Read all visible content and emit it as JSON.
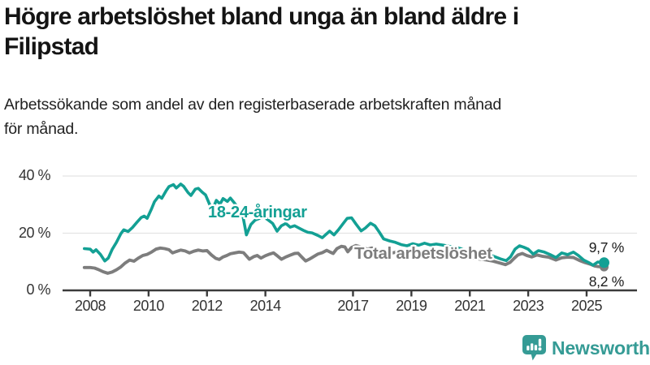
{
  "header": {
    "title_line1": "Högre arbetslöshet bland unga än bland äldre i",
    "title_line2": "Filipstad",
    "subtitle_line1": "Arbetssökande som andel av den registerbaserade arbetskraften månad",
    "subtitle_line2": "för månad."
  },
  "logo": {
    "text": "Newsworthy",
    "icon": "bar-chart-speech-bubble-icon",
    "color": "#359b95"
  },
  "chart_data": {
    "type": "line",
    "title": "Högre arbetslöshet bland unga än bland äldre i Filipstad",
    "subtitle": "Arbetssökande som andel av den registerbaserade arbetskraften månad för månad.",
    "grid": "horizontal",
    "x_axis": {
      "ticks": [
        2008,
        2010,
        2012,
        2014,
        2017,
        2019,
        2021,
        2023,
        2025
      ],
      "range": [
        2007.1,
        2026.7
      ]
    },
    "y_axis": {
      "ticks": [
        {
          "value": 0,
          "label": "0 %"
        },
        {
          "value": 20,
          "label": "20 %"
        },
        {
          "value": 40,
          "label": "40 %"
        }
      ],
      "range": [
        0,
        42
      ],
      "unit": "%"
    },
    "series": [
      {
        "id": "youth",
        "name": "18-24-åringar",
        "label": "18-24-åringar",
        "end_label": "9,7 %",
        "latest_value": 9.7,
        "color": "#13a094",
        "stroke_width": 3.6,
        "dot_radius": 6.5,
        "points": [
          [
            2007.8,
            14.6
          ],
          [
            2008.0,
            14.4
          ],
          [
            2008.1,
            13.4
          ],
          [
            2008.2,
            14.2
          ],
          [
            2008.35,
            12.6
          ],
          [
            2008.5,
            10.3
          ],
          [
            2008.62,
            11.3
          ],
          [
            2008.75,
            14.3
          ],
          [
            2008.9,
            16.8
          ],
          [
            2009.05,
            19.8
          ],
          [
            2009.15,
            21.2
          ],
          [
            2009.3,
            20.6
          ],
          [
            2009.45,
            22.0
          ],
          [
            2009.6,
            23.8
          ],
          [
            2009.75,
            25.5
          ],
          [
            2009.85,
            26.0
          ],
          [
            2009.95,
            25.2
          ],
          [
            2010.1,
            28.5
          ],
          [
            2010.2,
            31.0
          ],
          [
            2010.35,
            33.0
          ],
          [
            2010.45,
            32.2
          ],
          [
            2010.6,
            34.8
          ],
          [
            2010.7,
            36.3
          ],
          [
            2010.85,
            37.0
          ],
          [
            2010.95,
            35.8
          ],
          [
            2011.1,
            37.2
          ],
          [
            2011.2,
            36.4
          ],
          [
            2011.35,
            34.2
          ],
          [
            2011.45,
            33.2
          ],
          [
            2011.6,
            35.4
          ],
          [
            2011.7,
            35.7
          ],
          [
            2011.85,
            34.2
          ],
          [
            2011.95,
            33.4
          ],
          [
            2012.1,
            29.8
          ],
          [
            2012.2,
            28.6
          ],
          [
            2012.32,
            31.5
          ],
          [
            2012.45,
            30.2
          ],
          [
            2012.55,
            32.1
          ],
          [
            2012.7,
            31.1
          ],
          [
            2012.8,
            32.3
          ],
          [
            2012.95,
            30.4
          ],
          [
            2013.1,
            28.4
          ],
          [
            2013.22,
            26.5
          ],
          [
            2013.35,
            19.4
          ],
          [
            2013.5,
            23.0
          ],
          [
            2013.65,
            24.6
          ],
          [
            2013.8,
            25.2
          ],
          [
            2013.95,
            25.6
          ],
          [
            2014.1,
            24.6
          ],
          [
            2014.25,
            23.4
          ],
          [
            2014.4,
            20.7
          ],
          [
            2014.55,
            22.6
          ],
          [
            2014.7,
            23.4
          ],
          [
            2014.85,
            22.1
          ],
          [
            2015.0,
            22.6
          ],
          [
            2015.15,
            21.8
          ],
          [
            2015.3,
            21.0
          ],
          [
            2015.45,
            20.3
          ],
          [
            2015.6,
            20.1
          ],
          [
            2015.8,
            19.2
          ],
          [
            2015.95,
            18.4
          ],
          [
            2016.1,
            19.8
          ],
          [
            2016.2,
            20.7
          ],
          [
            2016.35,
            19.4
          ],
          [
            2016.5,
            21.2
          ],
          [
            2016.65,
            23.2
          ],
          [
            2016.8,
            25.2
          ],
          [
            2016.95,
            25.4
          ],
          [
            2017.1,
            23.2
          ],
          [
            2017.28,
            20.8
          ],
          [
            2017.42,
            21.8
          ],
          [
            2017.6,
            23.5
          ],
          [
            2017.75,
            22.6
          ],
          [
            2017.9,
            20.4
          ],
          [
            2018.05,
            18.0
          ],
          [
            2018.25,
            17.3
          ],
          [
            2018.45,
            16.8
          ],
          [
            2018.65,
            16.0
          ],
          [
            2018.85,
            15.6
          ],
          [
            2019.05,
            16.3
          ],
          [
            2019.25,
            15.8
          ],
          [
            2019.45,
            16.5
          ],
          [
            2019.65,
            15.9
          ],
          [
            2019.85,
            16.2
          ],
          [
            2020.1,
            15.8
          ],
          [
            2020.35,
            15.3
          ],
          [
            2020.6,
            14.8
          ],
          [
            2020.85,
            14.2
          ],
          [
            2021.1,
            13.7
          ],
          [
            2021.35,
            13.2
          ],
          [
            2021.6,
            12.6
          ],
          [
            2021.85,
            11.8
          ],
          [
            2022.05,
            11.0
          ],
          [
            2022.25,
            10.4
          ],
          [
            2022.4,
            11.8
          ],
          [
            2022.55,
            14.4
          ],
          [
            2022.7,
            15.6
          ],
          [
            2022.85,
            15.1
          ],
          [
            2023.0,
            14.4
          ],
          [
            2023.17,
            12.7
          ],
          [
            2023.35,
            13.9
          ],
          [
            2023.55,
            13.4
          ],
          [
            2023.75,
            12.5
          ],
          [
            2023.95,
            11.5
          ],
          [
            2024.15,
            13.1
          ],
          [
            2024.35,
            12.5
          ],
          [
            2024.55,
            13.4
          ],
          [
            2024.72,
            12.2
          ],
          [
            2024.9,
            10.6
          ],
          [
            2025.1,
            9.6
          ],
          [
            2025.22,
            8.8
          ],
          [
            2025.38,
            9.9
          ],
          [
            2025.6,
            9.7
          ]
        ]
      },
      {
        "id": "total",
        "name": "Total arbetslöshet",
        "label": "Total arbetslöshet",
        "end_label": "8,2 %",
        "latest_value": 8.2,
        "color": "#7d7d7d",
        "stroke_width": 3.9,
        "dot_radius": 5.5,
        "points": [
          [
            2007.8,
            8.0
          ],
          [
            2008.0,
            8.0
          ],
          [
            2008.15,
            7.8
          ],
          [
            2008.3,
            7.2
          ],
          [
            2008.45,
            6.5
          ],
          [
            2008.6,
            6.0
          ],
          [
            2008.75,
            6.4
          ],
          [
            2008.9,
            7.2
          ],
          [
            2009.05,
            8.2
          ],
          [
            2009.2,
            9.6
          ],
          [
            2009.35,
            10.6
          ],
          [
            2009.5,
            10.2
          ],
          [
            2009.65,
            11.3
          ],
          [
            2009.8,
            12.2
          ],
          [
            2009.95,
            12.6
          ],
          [
            2010.1,
            13.4
          ],
          [
            2010.25,
            14.4
          ],
          [
            2010.4,
            14.8
          ],
          [
            2010.55,
            14.6
          ],
          [
            2010.7,
            14.2
          ],
          [
            2010.82,
            13.1
          ],
          [
            2010.95,
            13.6
          ],
          [
            2011.1,
            14.1
          ],
          [
            2011.25,
            13.8
          ],
          [
            2011.4,
            13.1
          ],
          [
            2011.55,
            13.7
          ],
          [
            2011.7,
            14.1
          ],
          [
            2011.85,
            13.8
          ],
          [
            2012.0,
            13.9
          ],
          [
            2012.15,
            12.4
          ],
          [
            2012.3,
            11.2
          ],
          [
            2012.42,
            10.8
          ],
          [
            2012.55,
            11.7
          ],
          [
            2012.68,
            12.2
          ],
          [
            2012.8,
            12.8
          ],
          [
            2012.95,
            13.1
          ],
          [
            2013.1,
            13.4
          ],
          [
            2013.25,
            13.2
          ],
          [
            2013.45,
            10.9
          ],
          [
            2013.6,
            11.8
          ],
          [
            2013.72,
            12.2
          ],
          [
            2013.85,
            11.3
          ],
          [
            2014.0,
            12.1
          ],
          [
            2014.15,
            12.7
          ],
          [
            2014.28,
            13.1
          ],
          [
            2014.42,
            12.0
          ],
          [
            2014.55,
            10.9
          ],
          [
            2014.7,
            11.7
          ],
          [
            2014.85,
            12.3
          ],
          [
            2015.0,
            12.9
          ],
          [
            2015.12,
            13.0
          ],
          [
            2015.25,
            11.6
          ],
          [
            2015.38,
            10.3
          ],
          [
            2015.52,
            11.0
          ],
          [
            2015.65,
            11.8
          ],
          [
            2015.8,
            12.7
          ],
          [
            2015.95,
            13.2
          ],
          [
            2016.1,
            14.0
          ],
          [
            2016.22,
            13.4
          ],
          [
            2016.32,
            12.9
          ],
          [
            2016.45,
            14.6
          ],
          [
            2016.6,
            15.4
          ],
          [
            2016.72,
            15.2
          ],
          [
            2016.82,
            13.5
          ],
          [
            2016.95,
            15.0
          ],
          [
            2017.1,
            15.7
          ],
          [
            2017.3,
            15.1
          ],
          [
            2017.5,
            14.4
          ],
          [
            2017.65,
            14.8
          ],
          [
            2017.85,
            14.0
          ],
          [
            2018.05,
            13.3
          ],
          [
            2018.25,
            12.9
          ],
          [
            2018.45,
            13.3
          ],
          [
            2018.65,
            12.6
          ],
          [
            2018.85,
            12.2
          ],
          [
            2019.05,
            12.6
          ],
          [
            2019.3,
            12.1
          ],
          [
            2019.55,
            12.4
          ],
          [
            2019.8,
            11.9
          ],
          [
            2020.05,
            12.2
          ],
          [
            2020.3,
            12.5
          ],
          [
            2020.55,
            12.2
          ],
          [
            2020.8,
            11.8
          ],
          [
            2021.05,
            11.4
          ],
          [
            2021.3,
            11.0
          ],
          [
            2021.55,
            10.7
          ],
          [
            2021.8,
            10.2
          ],
          [
            2022.05,
            9.5
          ],
          [
            2022.22,
            9.0
          ],
          [
            2022.38,
            9.8
          ],
          [
            2022.52,
            11.2
          ],
          [
            2022.65,
            12.4
          ],
          [
            2022.8,
            12.9
          ],
          [
            2022.95,
            12.2
          ],
          [
            2023.12,
            11.7
          ],
          [
            2023.3,
            12.4
          ],
          [
            2023.5,
            11.9
          ],
          [
            2023.7,
            11.6
          ],
          [
            2023.95,
            10.6
          ],
          [
            2024.15,
            11.4
          ],
          [
            2024.35,
            11.6
          ],
          [
            2024.55,
            11.5
          ],
          [
            2024.75,
            10.5
          ],
          [
            2024.95,
            9.7
          ],
          [
            2025.12,
            9.2
          ],
          [
            2025.28,
            8.5
          ],
          [
            2025.4,
            8.3
          ],
          [
            2025.6,
            8.2
          ]
        ]
      }
    ]
  }
}
